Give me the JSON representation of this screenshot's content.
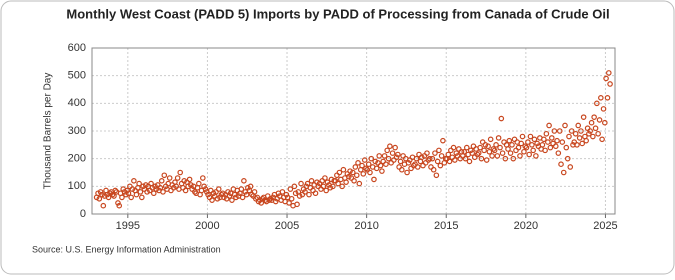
{
  "chart_data": {
    "type": "scatter",
    "title": "Monthly West Coast (PADD 5) Imports by PADD of Processing from Canada of Crude Oil",
    "ylabel": "Thousand Barrels per Day",
    "source": "Source: U.S. Energy Information Administration",
    "color": "#c8461e",
    "grid": true,
    "xlim": [
      1992.75,
      2025.6
    ],
    "xticks": [
      1995,
      2000,
      2005,
      2010,
      2015,
      2020,
      2025
    ],
    "ylim": [
      0,
      600
    ],
    "yticks": [
      0,
      100,
      200,
      300,
      400,
      500,
      600
    ],
    "x": [
      1993.04,
      1993.13,
      1993.21,
      1993.29,
      1993.38,
      1993.46,
      1993.54,
      1993.63,
      1993.71,
      1993.79,
      1993.88,
      1993.96,
      1994.04,
      1994.13,
      1994.21,
      1994.29,
      1994.38,
      1994.46,
      1994.54,
      1994.63,
      1994.71,
      1994.79,
      1994.88,
      1994.96,
      1995.04,
      1995.13,
      1995.21,
      1995.29,
      1995.38,
      1995.46,
      1995.54,
      1995.63,
      1995.71,
      1995.79,
      1995.88,
      1995.96,
      1996.04,
      1996.13,
      1996.21,
      1996.29,
      1996.38,
      1996.46,
      1996.54,
      1996.63,
      1996.71,
      1996.79,
      1996.88,
      1996.96,
      1997.04,
      1997.13,
      1997.21,
      1997.29,
      1997.38,
      1997.46,
      1997.54,
      1997.63,
      1997.71,
      1997.79,
      1997.88,
      1997.96,
      1998.04,
      1998.13,
      1998.21,
      1998.29,
      1998.38,
      1998.46,
      1998.54,
      1998.63,
      1998.71,
      1998.79,
      1998.88,
      1998.96,
      1999.04,
      1999.13,
      1999.21,
      1999.29,
      1999.38,
      1999.46,
      1999.54,
      1999.63,
      1999.71,
      1999.79,
      1999.88,
      1999.96,
      2000.04,
      2000.13,
      2000.21,
      2000.29,
      2000.38,
      2000.46,
      2000.54,
      2000.63,
      2000.71,
      2000.79,
      2000.88,
      2000.96,
      2001.04,
      2001.13,
      2001.21,
      2001.29,
      2001.38,
      2001.46,
      2001.54,
      2001.63,
      2001.71,
      2001.79,
      2001.88,
      2001.96,
      2002.04,
      2002.13,
      2002.21,
      2002.29,
      2002.38,
      2002.46,
      2002.54,
      2002.63,
      2002.71,
      2002.79,
      2002.88,
      2002.96,
      2003.04,
      2003.13,
      2003.21,
      2003.29,
      2003.38,
      2003.46,
      2003.54,
      2003.63,
      2003.71,
      2003.79,
      2003.88,
      2003.96,
      2004.04,
      2004.13,
      2004.21,
      2004.29,
      2004.38,
      2004.46,
      2004.54,
      2004.63,
      2004.71,
      2004.79,
      2004.88,
      2004.96,
      2005.04,
      2005.13,
      2005.21,
      2005.29,
      2005.38,
      2005.46,
      2005.54,
      2005.63,
      2005.71,
      2005.79,
      2005.88,
      2005.96,
      2006.04,
      2006.13,
      2006.21,
      2006.29,
      2006.38,
      2006.46,
      2006.54,
      2006.63,
      2006.71,
      2006.79,
      2006.88,
      2006.96,
      2007.04,
      2007.13,
      2007.21,
      2007.29,
      2007.38,
      2007.46,
      2007.54,
      2007.63,
      2007.71,
      2007.79,
      2007.88,
      2007.96,
      2008.04,
      2008.13,
      2008.21,
      2008.29,
      2008.38,
      2008.46,
      2008.54,
      2008.63,
      2008.71,
      2008.79,
      2008.88,
      2008.96,
      2009.04,
      2009.13,
      2009.21,
      2009.29,
      2009.38,
      2009.46,
      2009.54,
      2009.63,
      2009.71,
      2009.79,
      2009.88,
      2009.96,
      2010.04,
      2010.13,
      2010.21,
      2010.29,
      2010.38,
      2010.46,
      2010.54,
      2010.63,
      2010.71,
      2010.79,
      2010.88,
      2010.96,
      2011.04,
      2011.13,
      2011.21,
      2011.29,
      2011.38,
      2011.46,
      2011.54,
      2011.63,
      2011.71,
      2011.79,
      2011.88,
      2011.96,
      2012.04,
      2012.13,
      2012.21,
      2012.29,
      2012.38,
      2012.46,
      2012.54,
      2012.63,
      2012.71,
      2012.79,
      2012.88,
      2012.96,
      2013.04,
      2013.13,
      2013.21,
      2013.29,
      2013.38,
      2013.46,
      2013.54,
      2013.63,
      2013.71,
      2013.79,
      2013.88,
      2013.96,
      2014.04,
      2014.13,
      2014.21,
      2014.29,
      2014.38,
      2014.46,
      2014.54,
      2014.63,
      2014.71,
      2014.79,
      2014.88,
      2014.96,
      2015.04,
      2015.13,
      2015.21,
      2015.29,
      2015.38,
      2015.46,
      2015.54,
      2015.63,
      2015.71,
      2015.79,
      2015.88,
      2015.96,
      2016.04,
      2016.13,
      2016.21,
      2016.29,
      2016.38,
      2016.46,
      2016.54,
      2016.63,
      2016.71,
      2016.79,
      2016.88,
      2016.96,
      2017.04,
      2017.13,
      2017.21,
      2017.29,
      2017.38,
      2017.46,
      2017.54,
      2017.63,
      2017.71,
      2017.79,
      2017.88,
      2017.96,
      2018.04,
      2018.13,
      2018.21,
      2018.29,
      2018.38,
      2018.46,
      2018.54,
      2018.63,
      2018.71,
      2018.79,
      2018.88,
      2018.96,
      2019.04,
      2019.13,
      2019.21,
      2019.29,
      2019.38,
      2019.46,
      2019.54,
      2019.63,
      2019.71,
      2019.79,
      2019.88,
      2019.96,
      2020.04,
      2020.13,
      2020.21,
      2020.29,
      2020.38,
      2020.46,
      2020.54,
      2020.63,
      2020.71,
      2020.79,
      2020.88,
      2020.96,
      2021.04,
      2021.13,
      2021.21,
      2021.29,
      2021.38,
      2021.46,
      2021.54,
      2021.63,
      2021.71,
      2021.79,
      2021.88,
      2021.96,
      2022.04,
      2022.13,
      2022.21,
      2022.29,
      2022.38,
      2022.46,
      2022.54,
      2022.63,
      2022.71,
      2022.79,
      2022.88,
      2022.96,
      2023.04,
      2023.13,
      2023.21,
      2023.29,
      2023.38,
      2023.46,
      2023.54,
      2023.63,
      2023.71,
      2023.79,
      2023.88,
      2023.96,
      2024.04,
      2024.13,
      2024.21,
      2024.29,
      2024.38,
      2024.46,
      2024.54,
      2024.63,
      2024.71,
      2024.79,
      2024.88,
      2024.96,
      2025.04,
      2025.13,
      2025.21,
      2025.29
    ],
    "values": [
      60,
      75,
      55,
      80,
      70,
      30,
      65,
      85,
      70,
      60,
      75,
      80,
      70,
      65,
      85,
      80,
      40,
      30,
      75,
      60,
      90,
      80,
      70,
      85,
      75,
      100,
      60,
      90,
      120,
      85,
      70,
      95,
      110,
      80,
      60,
      100,
      90,
      105,
      80,
      100,
      85,
      110,
      95,
      75,
      100,
      90,
      105,
      85,
      95,
      120,
      80,
      140,
      100,
      90,
      110,
      130,
      85,
      105,
      95,
      115,
      100,
      130,
      90,
      150,
      110,
      95,
      120,
      85,
      115,
      100,
      125,
      105,
      90,
      100,
      80,
      75,
      95,
      110,
      70,
      85,
      130,
      100,
      90,
      80,
      70,
      60,
      85,
      50,
      75,
      65,
      80,
      55,
      90,
      60,
      70,
      75,
      60,
      70,
      55,
      80,
      65,
      75,
      50,
      90,
      70,
      60,
      85,
      65,
      75,
      90,
      60,
      120,
      80,
      70,
      95,
      85,
      100,
      70,
      65,
      80,
      55,
      60,
      45,
      50,
      40,
      55,
      60,
      50,
      45,
      65,
      50,
      55,
      50,
      60,
      70,
      45,
      55,
      75,
      65,
      50,
      80,
      60,
      45,
      70,
      60,
      40,
      90,
      55,
      30,
      100,
      75,
      35,
      80,
      65,
      110,
      70,
      90,
      80,
      100,
      110,
      70,
      95,
      120,
      85,
      105,
      75,
      115,
      100,
      110,
      90,
      120,
      100,
      130,
      85,
      115,
      105,
      95,
      125,
      100,
      120,
      120,
      140,
      110,
      150,
      125,
      100,
      160,
      130,
      115,
      145,
      135,
      155,
      130,
      150,
      120,
      170,
      140,
      185,
      110,
      160,
      175,
      145,
      195,
      165,
      160,
      180,
      150,
      200,
      170,
      125,
      190,
      165,
      185,
      210,
      175,
      155,
      190,
      210,
      180,
      230,
      200,
      245,
      185,
      220,
      195,
      240,
      205,
      215,
      170,
      190,
      160,
      210,
      180,
      200,
      150,
      185,
      195,
      165,
      205,
      175,
      180,
      200,
      170,
      215,
      190,
      205,
      175,
      210,
      185,
      220,
      195,
      200,
      170,
      200,
      160,
      220,
      140,
      190,
      230,
      175,
      210,
      265,
      185,
      200,
      200,
      215,
      190,
      230,
      205,
      240,
      195,
      220,
      210,
      235,
      200,
      225,
      210,
      225,
      200,
      240,
      215,
      190,
      230,
      220,
      245,
      205,
      235,
      215,
      220,
      240,
      200,
      260,
      230,
      250,
      195,
      245,
      225,
      270,
      210,
      235,
      230,
      250,
      210,
      275,
      240,
      345,
      220,
      260,
      200,
      250,
      235,
      265,
      220,
      250,
      200,
      270,
      230,
      260,
      240,
      210,
      255,
      280,
      225,
      245,
      240,
      260,
      215,
      280,
      250,
      230,
      270,
      210,
      255,
      245,
      275,
      235,
      250,
      270,
      230,
      290,
      260,
      320,
      240,
      275,
      255,
      300,
      245,
      265,
      220,
      300,
      180,
      260,
      150,
      320,
      240,
      200,
      280,
      170,
      300,
      250,
      260,
      290,
      250,
      320,
      275,
      300,
      255,
      350,
      280,
      265,
      310,
      290,
      300,
      330,
      280,
      350,
      310,
      400,
      290,
      340,
      420,
      270,
      380,
      330,
      490,
      420,
      510,
      470
    ]
  }
}
